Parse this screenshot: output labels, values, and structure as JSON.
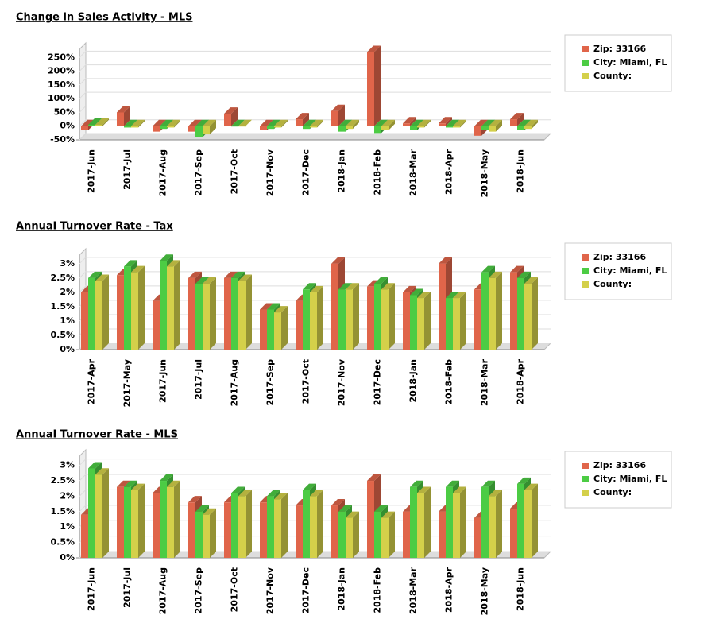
{
  "chart_data": [
    {
      "type": "bar3d",
      "title": "Change in Sales Activity - MLS",
      "categories": [
        "2017-Jun",
        "2017-Jul",
        "2017-Aug",
        "2017-Sep",
        "2017-Oct",
        "2017-Nov",
        "2017-Dec",
        "2018-Jan",
        "2018-Feb",
        "2018-Mar",
        "2018-Apr",
        "2018-May",
        "2018-Jun"
      ],
      "series": [
        {
          "name": "Zip: 33166",
          "color": "#e0654a",
          "values": [
            -15,
            50,
            -20,
            -20,
            45,
            -15,
            25,
            55,
            270,
            10,
            10,
            -35,
            25
          ]
        },
        {
          "name": "City: Miami, FL",
          "color": "#4ccc44",
          "values": [
            5,
            -5,
            -10,
            -40,
            0,
            -10,
            -10,
            -20,
            -25,
            -15,
            -5,
            -15,
            -15
          ]
        },
        {
          "name": "County:",
          "color": "#d4d04a",
          "values": [
            5,
            -5,
            -5,
            -30,
            0,
            -5,
            -5,
            -10,
            -15,
            -5,
            -5,
            -20,
            -10
          ]
        }
      ],
      "ylim": [
        -50,
        280
      ],
      "yticks": [
        {
          "value": -50,
          "label": "-50%"
        },
        {
          "value": 0,
          "label": "0%"
        },
        {
          "value": 50,
          "label": "50%"
        },
        {
          "value": 100,
          "label": "100%"
        },
        {
          "value": 150,
          "label": "150%"
        },
        {
          "value": 200,
          "label": "200%"
        },
        {
          "value": 250,
          "label": "250%"
        }
      ],
      "grid": true,
      "legend": "right"
    },
    {
      "type": "bar3d",
      "title": "Annual Turnover Rate - Tax",
      "categories": [
        "2017-Apr",
        "2017-May",
        "2017-Jun",
        "2017-Jul",
        "2017-Aug",
        "2017-Sep",
        "2017-Oct",
        "2017-Nov",
        "2017-Dec",
        "2018-Jan",
        "2018-Feb",
        "2018-Mar",
        "2018-Apr"
      ],
      "series": [
        {
          "name": "Zip: 33166",
          "color": "#e0654a",
          "values": [
            2.0,
            2.6,
            1.7,
            2.5,
            2.5,
            1.4,
            1.7,
            3.0,
            2.2,
            2.0,
            3.0,
            2.1,
            2.7
          ]
        },
        {
          "name": "City: Miami, FL",
          "color": "#4ccc44",
          "values": [
            2.5,
            2.9,
            3.1,
            2.3,
            2.5,
            1.4,
            2.1,
            2.1,
            2.3,
            1.9,
            1.8,
            2.7,
            2.5
          ]
        },
        {
          "name": "County:",
          "color": "#d4d04a",
          "values": [
            2.4,
            2.7,
            2.9,
            2.3,
            2.4,
            1.3,
            2.0,
            2.1,
            2.1,
            1.8,
            1.8,
            2.5,
            2.3
          ]
        }
      ],
      "ylim": [
        0,
        3.3
      ],
      "yticks": [
        {
          "value": 0,
          "label": "0%"
        },
        {
          "value": 0.5,
          "label": "0.5%"
        },
        {
          "value": 1,
          "label": "1%"
        },
        {
          "value": 1.5,
          "label": "1.5%"
        },
        {
          "value": 2,
          "label": "2%"
        },
        {
          "value": 2.5,
          "label": "2.5%"
        },
        {
          "value": 3,
          "label": "3%"
        }
      ],
      "grid": true,
      "legend": "right"
    },
    {
      "type": "bar3d",
      "title": "Annual Turnover Rate - MLS",
      "categories": [
        "2017-Jun",
        "2017-Jul",
        "2017-Aug",
        "2017-Sep",
        "2017-Oct",
        "2017-Nov",
        "2017-Dec",
        "2018-Jan",
        "2018-Feb",
        "2018-Mar",
        "2018-Apr",
        "2018-May",
        "2018-Jun"
      ],
      "series": [
        {
          "name": "Zip: 33166",
          "color": "#e0654a",
          "values": [
            1.4,
            2.3,
            2.1,
            1.8,
            1.8,
            1.8,
            1.7,
            1.7,
            2.5,
            1.5,
            1.5,
            1.3,
            1.6
          ]
        },
        {
          "name": "City: Miami, FL",
          "color": "#4ccc44",
          "values": [
            2.9,
            2.3,
            2.5,
            1.5,
            2.1,
            2.0,
            2.2,
            1.5,
            1.5,
            2.3,
            2.3,
            2.3,
            2.4
          ]
        },
        {
          "name": "County:",
          "color": "#d4d04a",
          "values": [
            2.7,
            2.2,
            2.3,
            1.4,
            2.0,
            1.9,
            2.0,
            1.3,
            1.3,
            2.1,
            2.1,
            2.0,
            2.2
          ]
        }
      ],
      "ylim": [
        0,
        3.3
      ],
      "yticks": [
        {
          "value": 0,
          "label": "0%"
        },
        {
          "value": 0.5,
          "label": "0.5%"
        },
        {
          "value": 1,
          "label": "1%"
        },
        {
          "value": 1.5,
          "label": "1.5%"
        },
        {
          "value": 2,
          "label": "2%"
        },
        {
          "value": 2.5,
          "label": "2.5%"
        },
        {
          "value": 3,
          "label": "3%"
        }
      ],
      "grid": true,
      "legend": "right"
    }
  ]
}
